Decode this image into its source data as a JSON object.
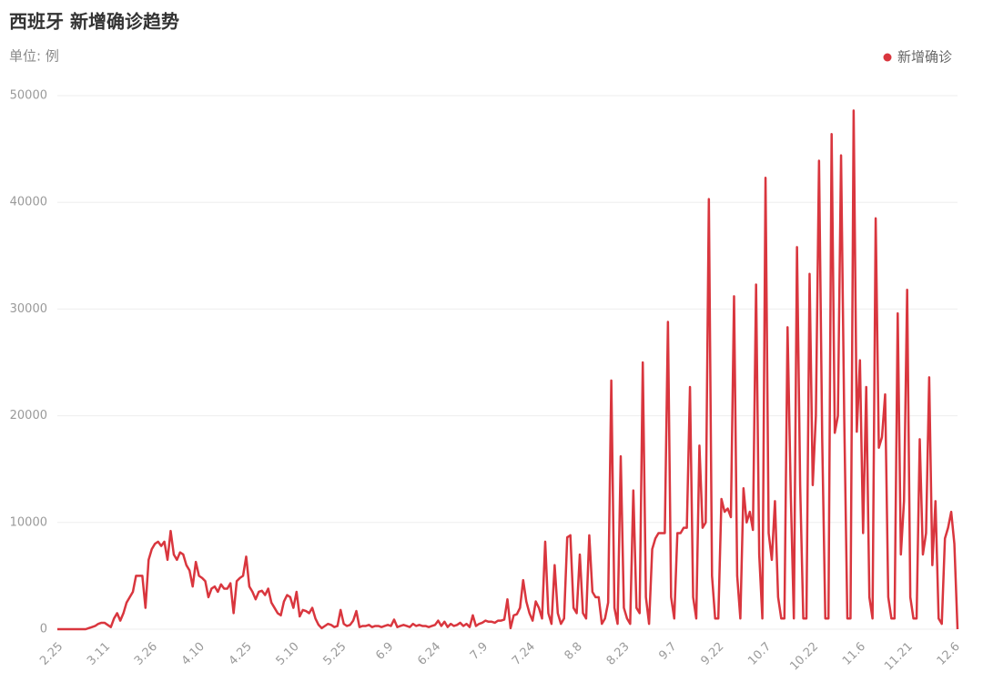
{
  "chart_data": {
    "type": "line",
    "title": "西班牙 新增确诊趋势",
    "subtitle": "单位: 例",
    "categories": [
      "2.25",
      null,
      null,
      null,
      null,
      null,
      null,
      null,
      null,
      null,
      null,
      null,
      null,
      null,
      null,
      "3.11",
      null,
      null,
      null,
      null,
      null,
      null,
      null,
      null,
      null,
      null,
      null,
      null,
      null,
      null,
      "3.26",
      null,
      null,
      null,
      null,
      null,
      null,
      null,
      null,
      null,
      null,
      null,
      null,
      null,
      null,
      "4.10",
      null,
      null,
      null,
      null,
      null,
      null,
      null,
      null,
      null,
      null,
      null,
      null,
      null,
      null,
      "4.25",
      null,
      null,
      null,
      null,
      null,
      null,
      null,
      null,
      null,
      null,
      null,
      null,
      null,
      null,
      "5.10",
      null,
      null,
      null,
      null,
      null,
      null,
      null,
      null,
      null,
      null,
      null,
      null,
      null,
      null,
      "5.25",
      null,
      null,
      null,
      null,
      null,
      null,
      null,
      null,
      null,
      null,
      null,
      null,
      null,
      null,
      "6.9",
      null,
      null,
      null,
      null,
      null,
      null,
      null,
      null,
      null,
      null,
      null,
      null,
      null,
      null,
      "6.24",
      null,
      null,
      null,
      null,
      null,
      null,
      null,
      null,
      null,
      null,
      null,
      null,
      null,
      null,
      "7.9",
      null,
      null,
      null,
      null,
      null,
      null,
      null,
      null,
      null,
      null,
      null,
      null,
      null,
      null,
      "7.24",
      null,
      null,
      null,
      null,
      null,
      null,
      null,
      null,
      null,
      null,
      null,
      null,
      null,
      null,
      "8.8",
      null,
      null,
      null,
      null,
      null,
      null,
      null,
      null,
      null,
      null,
      null,
      null,
      null,
      null,
      "8.23",
      null,
      null,
      null,
      null,
      null,
      null,
      null,
      null,
      null,
      null,
      null,
      null,
      null,
      null,
      "9.7",
      null,
      null,
      null,
      null,
      null,
      null,
      null,
      null,
      null,
      null,
      null,
      null,
      null,
      null,
      "9.22",
      null,
      null,
      null,
      null,
      null,
      null,
      null,
      null,
      null,
      null,
      null,
      null,
      null,
      null,
      "10.7",
      null,
      null,
      null,
      null,
      null,
      null,
      null,
      null,
      null,
      null,
      null,
      null,
      null,
      null,
      "10.22",
      null,
      null,
      null,
      null,
      null,
      null,
      null,
      null,
      null,
      null,
      null,
      null,
      null,
      null,
      "11.6",
      null,
      null,
      null,
      null,
      null,
      null,
      null,
      null,
      null,
      null,
      null,
      null,
      null,
      null,
      "11.21",
      null,
      null,
      null,
      null,
      null,
      null,
      null,
      null,
      null,
      null,
      null,
      null,
      null,
      null,
      "12.6",
      null
    ],
    "series": [
      {
        "name": "新增确诊",
        "color": "#d9363e",
        "values": [
          0,
          0,
          0,
          0,
          0,
          0,
          0,
          0,
          0,
          0,
          100,
          200,
          300,
          500,
          600,
          600,
          400,
          200,
          1000,
          1500,
          800,
          1500,
          2500,
          3000,
          3500,
          5000,
          5000,
          5000,
          2000,
          6500,
          7500,
          8000,
          8200,
          7800,
          8200,
          6500,
          9200,
          7000,
          6500,
          7200,
          7000,
          6000,
          5500,
          4000,
          6300,
          5000,
          4800,
          4500,
          3000,
          3800,
          4000,
          3500,
          4200,
          3800,
          3800,
          4300,
          1500,
          4500,
          4800,
          5000,
          6800,
          4000,
          3500,
          2800,
          3500,
          3600,
          3200,
          3800,
          2500,
          2000,
          1500,
          1300,
          2600,
          3200,
          3000,
          2000,
          3500,
          1200,
          1800,
          1700,
          1500,
          2000,
          1000,
          400,
          100,
          300,
          500,
          400,
          200,
          300,
          1800,
          500,
          300,
          400,
          800,
          1700,
          200,
          300,
          300,
          400,
          200,
          300,
          300,
          200,
          300,
          400,
          300,
          900,
          200,
          300,
          400,
          300,
          200,
          500,
          300,
          400,
          300,
          300,
          200,
          300,
          400,
          800,
          300,
          700,
          200,
          500,
          300,
          400,
          600,
          300,
          500,
          200,
          1300,
          300,
          500,
          600,
          800,
          700,
          700,
          600,
          800,
          800,
          900,
          2800,
          100,
          1300,
          1400,
          2000,
          4600,
          2600,
          1500,
          800,
          2600,
          2000,
          1000,
          8200,
          1500,
          500,
          6000,
          1500,
          500,
          1000,
          8600,
          8800,
          2000,
          1500,
          7000,
          1500,
          1000,
          8800,
          3500,
          3000,
          3000,
          500,
          1000,
          2500,
          23300,
          2000,
          500,
          16200,
          2000,
          1000,
          500,
          13000,
          2000,
          1500,
          25000,
          3000,
          500,
          7500,
          8500,
          9000,
          9000,
          9000,
          28800,
          3000,
          1000,
          9000,
          9000,
          9500,
          9500,
          22700,
          3000,
          1000,
          17200,
          9500,
          10000,
          40300,
          5000,
          1000,
          1000,
          12200,
          11000,
          11300,
          10500,
          31200,
          5000,
          1000,
          13200,
          10000,
          11000,
          9300,
          32300,
          7000,
          1000,
          42300,
          9000,
          6500,
          12000,
          3000,
          1000,
          1000,
          28300,
          13000,
          1000,
          35800,
          13500,
          1000,
          1000,
          33300,
          13500,
          20000,
          43900,
          18000,
          1000,
          1000,
          46400,
          18400,
          20000,
          44400,
          20000,
          1000,
          1000,
          48600,
          18500,
          25200,
          9000,
          22700,
          3000,
          1000,
          38500,
          17000,
          18000,
          22000,
          3000,
          1000,
          1000,
          29600,
          7000,
          12000,
          31800,
          3000,
          1000,
          1000,
          17800,
          7000,
          9000,
          23600,
          6000,
          12000,
          1000,
          500,
          8500,
          9500,
          11000,
          8000,
          0
        ]
      }
    ],
    "ylim": [
      0,
      50000
    ],
    "yticks": [
      0,
      10000,
      20000,
      30000,
      40000,
      50000
    ],
    "grid": true,
    "legend": "top-right"
  }
}
